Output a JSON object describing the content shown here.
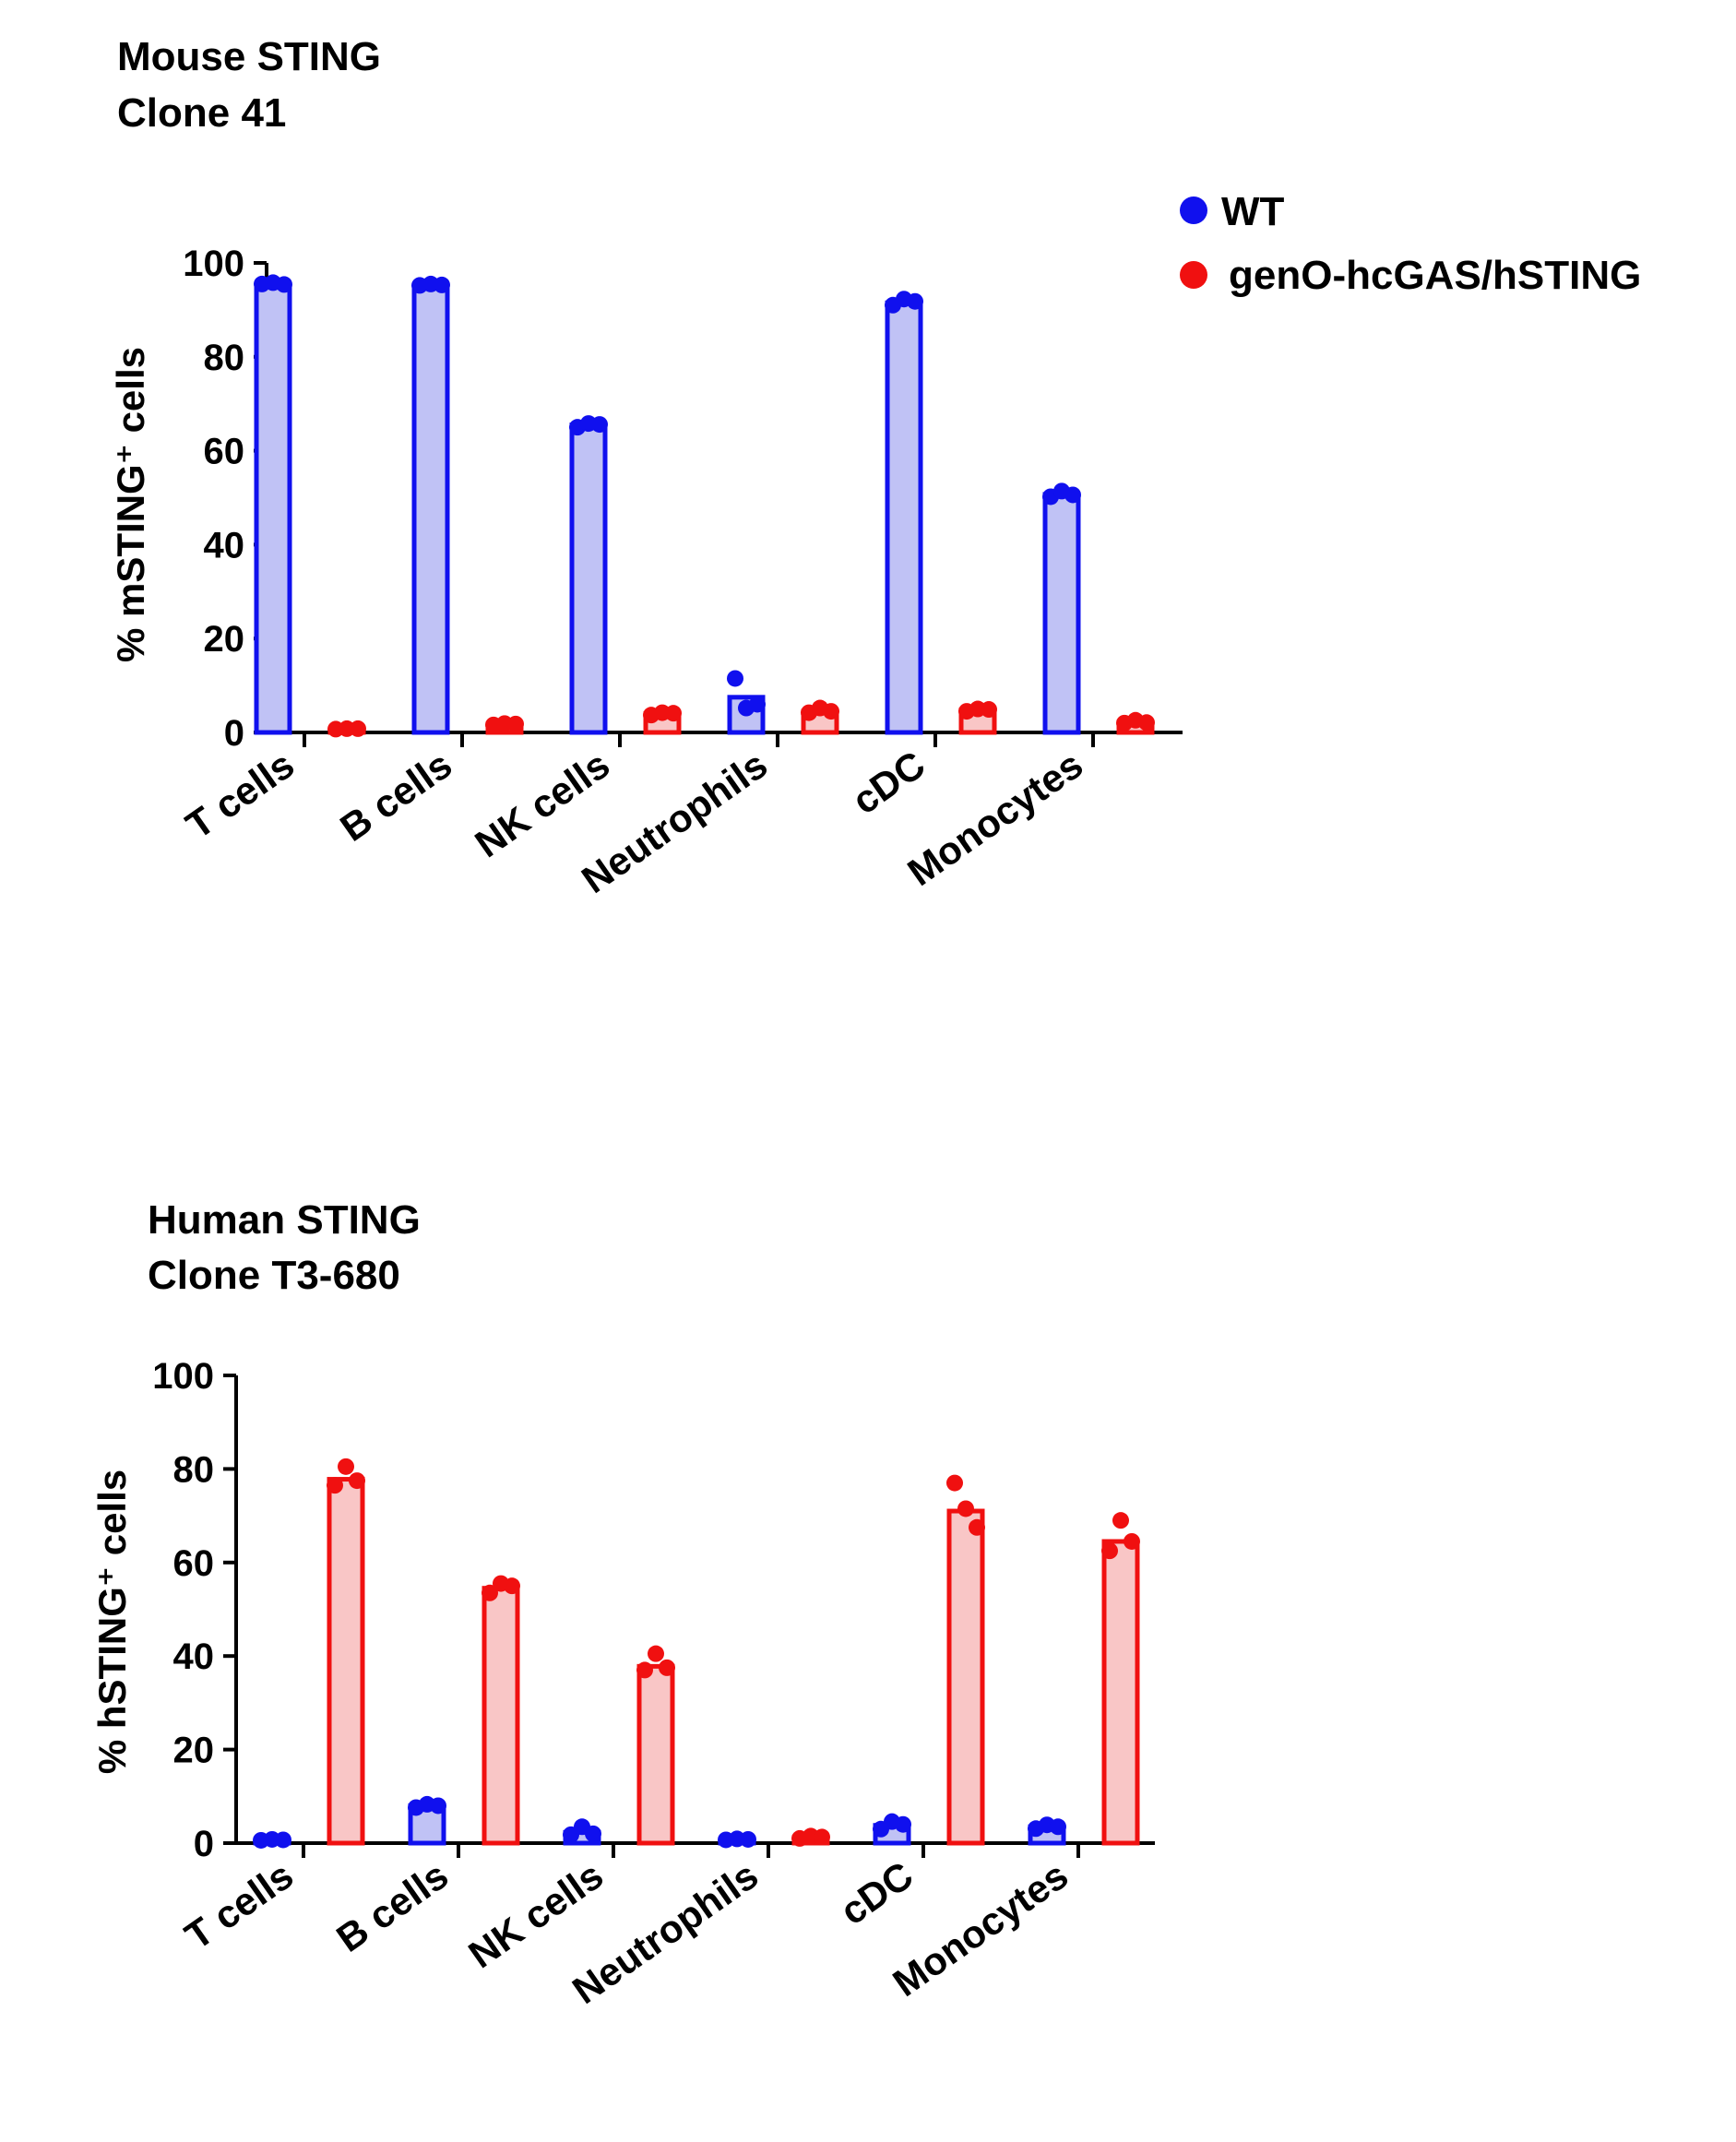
{
  "colors": {
    "wt_stroke": "#1010ee",
    "wt_fill": "#c0c2f5",
    "tg_stroke": "#f01010",
    "tg_fill": "#f9c6c6",
    "axis": "#000000"
  },
  "legend": {
    "entries": [
      {
        "label": "WT",
        "series": "wt"
      },
      {
        "label": "genO-hcGAS/hSTING",
        "series": "tg"
      }
    ]
  },
  "chart_data": [
    {
      "type": "bar",
      "title_line1": "Mouse STING",
      "title_line2": "Clone 41",
      "ylabel": "% mSTING⁺ cells",
      "ylim": [
        0,
        100
      ],
      "yticks": [
        "0",
        "20",
        "40",
        "60",
        "80",
        "100"
      ],
      "categories": [
        "T cells",
        "B cells",
        "NK cells",
        "Neutrophils",
        "cDC",
        "Monocytes"
      ],
      "series": [
        {
          "name": "WT",
          "key": "wt",
          "values": [
            95.5,
            95.3,
            65.5,
            7.5,
            91.5,
            50.7
          ],
          "points": [
            [
              95.5,
              95.8,
              95.4
            ],
            [
              95.2,
              95.5,
              95.3
            ],
            [
              65.0,
              65.8,
              65.6
            ],
            [
              11.5,
              5.2,
              6.0
            ],
            [
              91.0,
              92.3,
              91.8
            ],
            [
              50.2,
              51.4,
              50.6
            ]
          ]
        },
        {
          "name": "genO-hcGAS/hSTING",
          "key": "tg",
          "values": [
            0.8,
            1.8,
            4.0,
            4.5,
            4.8,
            2.2
          ],
          "points": [
            [
              0.7,
              0.8,
              0.8
            ],
            [
              1.6,
              1.9,
              1.8
            ],
            [
              3.7,
              4.2,
              4.1
            ],
            [
              4.2,
              5.2,
              4.5
            ],
            [
              4.5,
              5.0,
              4.9
            ],
            [
              2.0,
              2.6,
              2.1
            ]
          ]
        }
      ]
    },
    {
      "type": "bar",
      "title_line1": "Human STING",
      "title_line2": "Clone T3-680",
      "ylabel": "% hSTING⁺ cells",
      "ylim": [
        0,
        100
      ],
      "yticks": [
        "0",
        "20",
        "40",
        "60",
        "80",
        "100"
      ],
      "categories": [
        "T cells",
        "B cells",
        "NK cells",
        "Neutrophils",
        "cDC",
        "Monocytes"
      ],
      "series": [
        {
          "name": "WT",
          "key": "wt",
          "values": [
            0.7,
            8.0,
            2.3,
            0.8,
            3.8,
            3.5
          ],
          "points": [
            [
              0.6,
              0.8,
              0.7
            ],
            [
              7.6,
              8.3,
              8.0
            ],
            [
              1.8,
              3.5,
              2.0
            ],
            [
              0.7,
              0.9,
              0.8
            ],
            [
              3.0,
              4.6,
              4.0
            ],
            [
              3.1,
              3.9,
              3.5
            ]
          ]
        },
        {
          "name": "genO-hcGAS/hSTING",
          "key": "tg",
          "values": [
            77.8,
            54.5,
            37.8,
            1.2,
            71.0,
            64.5
          ],
          "points": [
            [
              76.5,
              80.5,
              77.5
            ],
            [
              53.5,
              55.5,
              55.0
            ],
            [
              37.0,
              40.5,
              37.5
            ],
            [
              1.0,
              1.5,
              1.3
            ],
            [
              77.0,
              71.5,
              67.5
            ],
            [
              62.5,
              69.0,
              64.5
            ]
          ]
        }
      ]
    }
  ]
}
